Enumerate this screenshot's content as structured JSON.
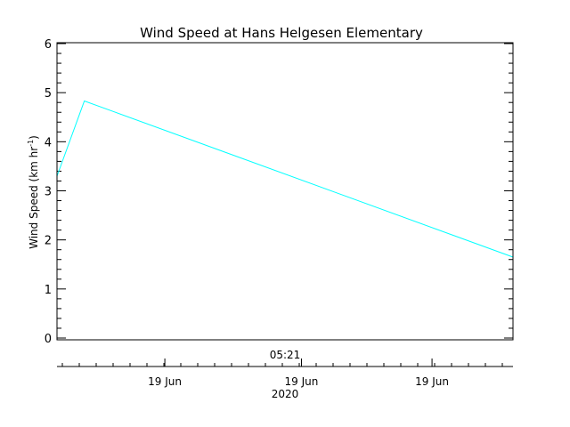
{
  "chart_data": {
    "type": "line",
    "title": "Wind Speed at Hans Helgesen Elementary",
    "ylabel": "Wind Speed (km hr",
    "ylabel_sup": "-1",
    "ylabel_end": ")",
    "ylim": [
      0,
      6
    ],
    "yticks": [
      "0",
      "1",
      "2",
      "3",
      "4",
      "5",
      "6"
    ],
    "x_time_label": "05:21",
    "x_date_ticks": [
      "19 Jun",
      "19 Jun",
      "19 Jun"
    ],
    "x_year_label": "2020",
    "line_color": "#00ffff",
    "series": [
      {
        "x_fraction": [
          0,
          0.06,
          1
        ],
        "values": [
          3.3,
          4.83,
          1.65
        ]
      }
    ]
  }
}
